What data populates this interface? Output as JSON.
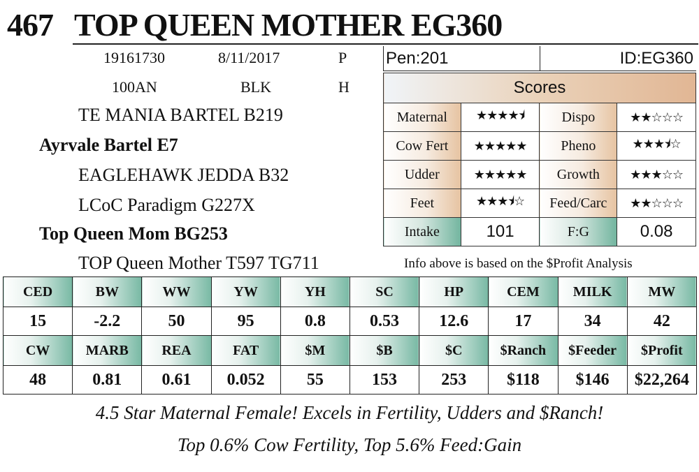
{
  "header": {
    "lot": "467",
    "name": "TOP QUEEN MOTHER EG360"
  },
  "info": {
    "reg": "19161730",
    "dob": "8/11/2017",
    "p": "P",
    "breed": "100AN",
    "color": "BLK",
    "h": "H"
  },
  "pedigree": {
    "sire_sire": "TE MANIA BARTEL B219",
    "sire": "Ayrvale Bartel E7",
    "sire_dam": "EAGLEHAWK JEDDA B32",
    "dam_sire": "LCoC Paradigm G227X",
    "dam": "Top Queen Mom BG253",
    "dam_dam": "TOP Queen Mother T597 TG711"
  },
  "pen": "Pen:201",
  "id": "ID:EG360",
  "scores": {
    "title": "Scores",
    "rows": [
      {
        "l1": "Maternal",
        "s1": "★★★★⯨",
        "l2": "Dispo",
        "s2": "★★☆☆☆"
      },
      {
        "l1": "Cow Fert",
        "s1": "★★★★★",
        "l2": "Pheno",
        "s2": "★★★⯨☆"
      },
      {
        "l1": "Udder",
        "s1": "★★★★★",
        "l2": "Growth",
        "s2": "★★★☆☆"
      },
      {
        "l1": "Feet",
        "s1": "★★★⯨☆",
        "l2": "Feed/Carc",
        "s2": "★★☆☆☆"
      }
    ],
    "intake_label": "Intake",
    "intake_value": "101",
    "fg_label": "F:G",
    "fg_value": "0.08"
  },
  "note": "Info above is based on the $Profit Analysis",
  "epd": {
    "row1_headers": [
      "CED",
      "BW",
      "WW",
      "YW",
      "YH",
      "SC",
      "HP",
      "CEM",
      "MILK",
      "MW"
    ],
    "row1_values": [
      "15",
      "-2.2",
      "50",
      "95",
      "0.8",
      "0.53",
      "12.6",
      "17",
      "34",
      "42"
    ],
    "row2_headers": [
      "CW",
      "MARB",
      "REA",
      "FAT",
      "$M",
      "$B",
      "$C",
      "$Ranch",
      "$Feeder",
      "$Profit"
    ],
    "row2_values": [
      "48",
      "0.81",
      "0.61",
      "0.052",
      "55",
      "153",
      "253",
      "$118",
      "$146",
      "$22,264"
    ]
  },
  "tagline1": "4.5 Star Maternal Female! Excels in Fertility, Udders and $Ranch!",
  "tagline2": "Top 0.6% Cow Fertility, Top 5.6% Feed:Gain"
}
